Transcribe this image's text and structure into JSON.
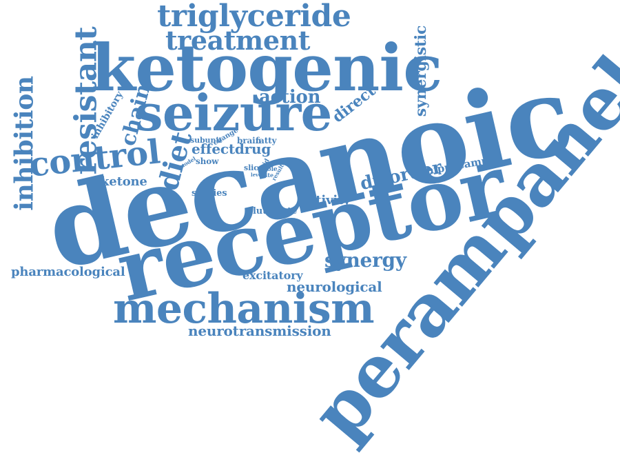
{
  "cloud": {
    "color": "#4a84bd",
    "words": [
      "triglyceride",
      "treatment",
      "ketogenic",
      "resistant",
      "inhibition",
      "seizure",
      "action",
      "direct",
      "synergistic",
      "control",
      "chain",
      "inhibitory",
      "diet",
      "subunit",
      "change",
      "brain",
      "fatty",
      "effectdrug",
      "show",
      "model",
      "slice",
      "acid",
      "role",
      "level",
      "site",
      "result",
      "ketone",
      "studies",
      "glutamate",
      "activity",
      "disorder",
      "hippocampal",
      "decanoic",
      "receptor",
      "perampanel",
      "pharmacological",
      "excitatory",
      "synergy",
      "neurological",
      "mechanism",
      "neurotransmission"
    ]
  }
}
